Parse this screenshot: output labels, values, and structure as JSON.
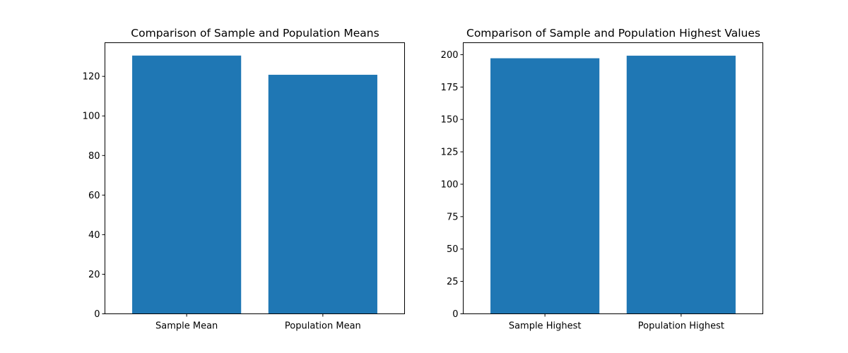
{
  "chart_data": [
    {
      "type": "bar",
      "title": "Comparison of Sample and Population Means",
      "xlabel": "",
      "ylabel": "",
      "categories": [
        "Sample Mean",
        "Population Mean"
      ],
      "values": [
        130.5,
        120.8
      ],
      "ylim": [
        0,
        137
      ],
      "yticks": [
        0,
        20,
        40,
        60,
        80,
        100,
        120
      ],
      "bar_color": "#1f77b4",
      "grid": false
    },
    {
      "type": "bar",
      "title": "Comparison of Sample and Population Highest Values",
      "xlabel": "",
      "ylabel": "",
      "categories": [
        "Sample Highest",
        "Population Highest"
      ],
      "values": [
        197.2,
        199.2
      ],
      "ylim": [
        0,
        209.2
      ],
      "yticks": [
        0,
        25,
        50,
        75,
        100,
        125,
        150,
        175,
        200
      ],
      "bar_color": "#1f77b4",
      "grid": false
    }
  ]
}
